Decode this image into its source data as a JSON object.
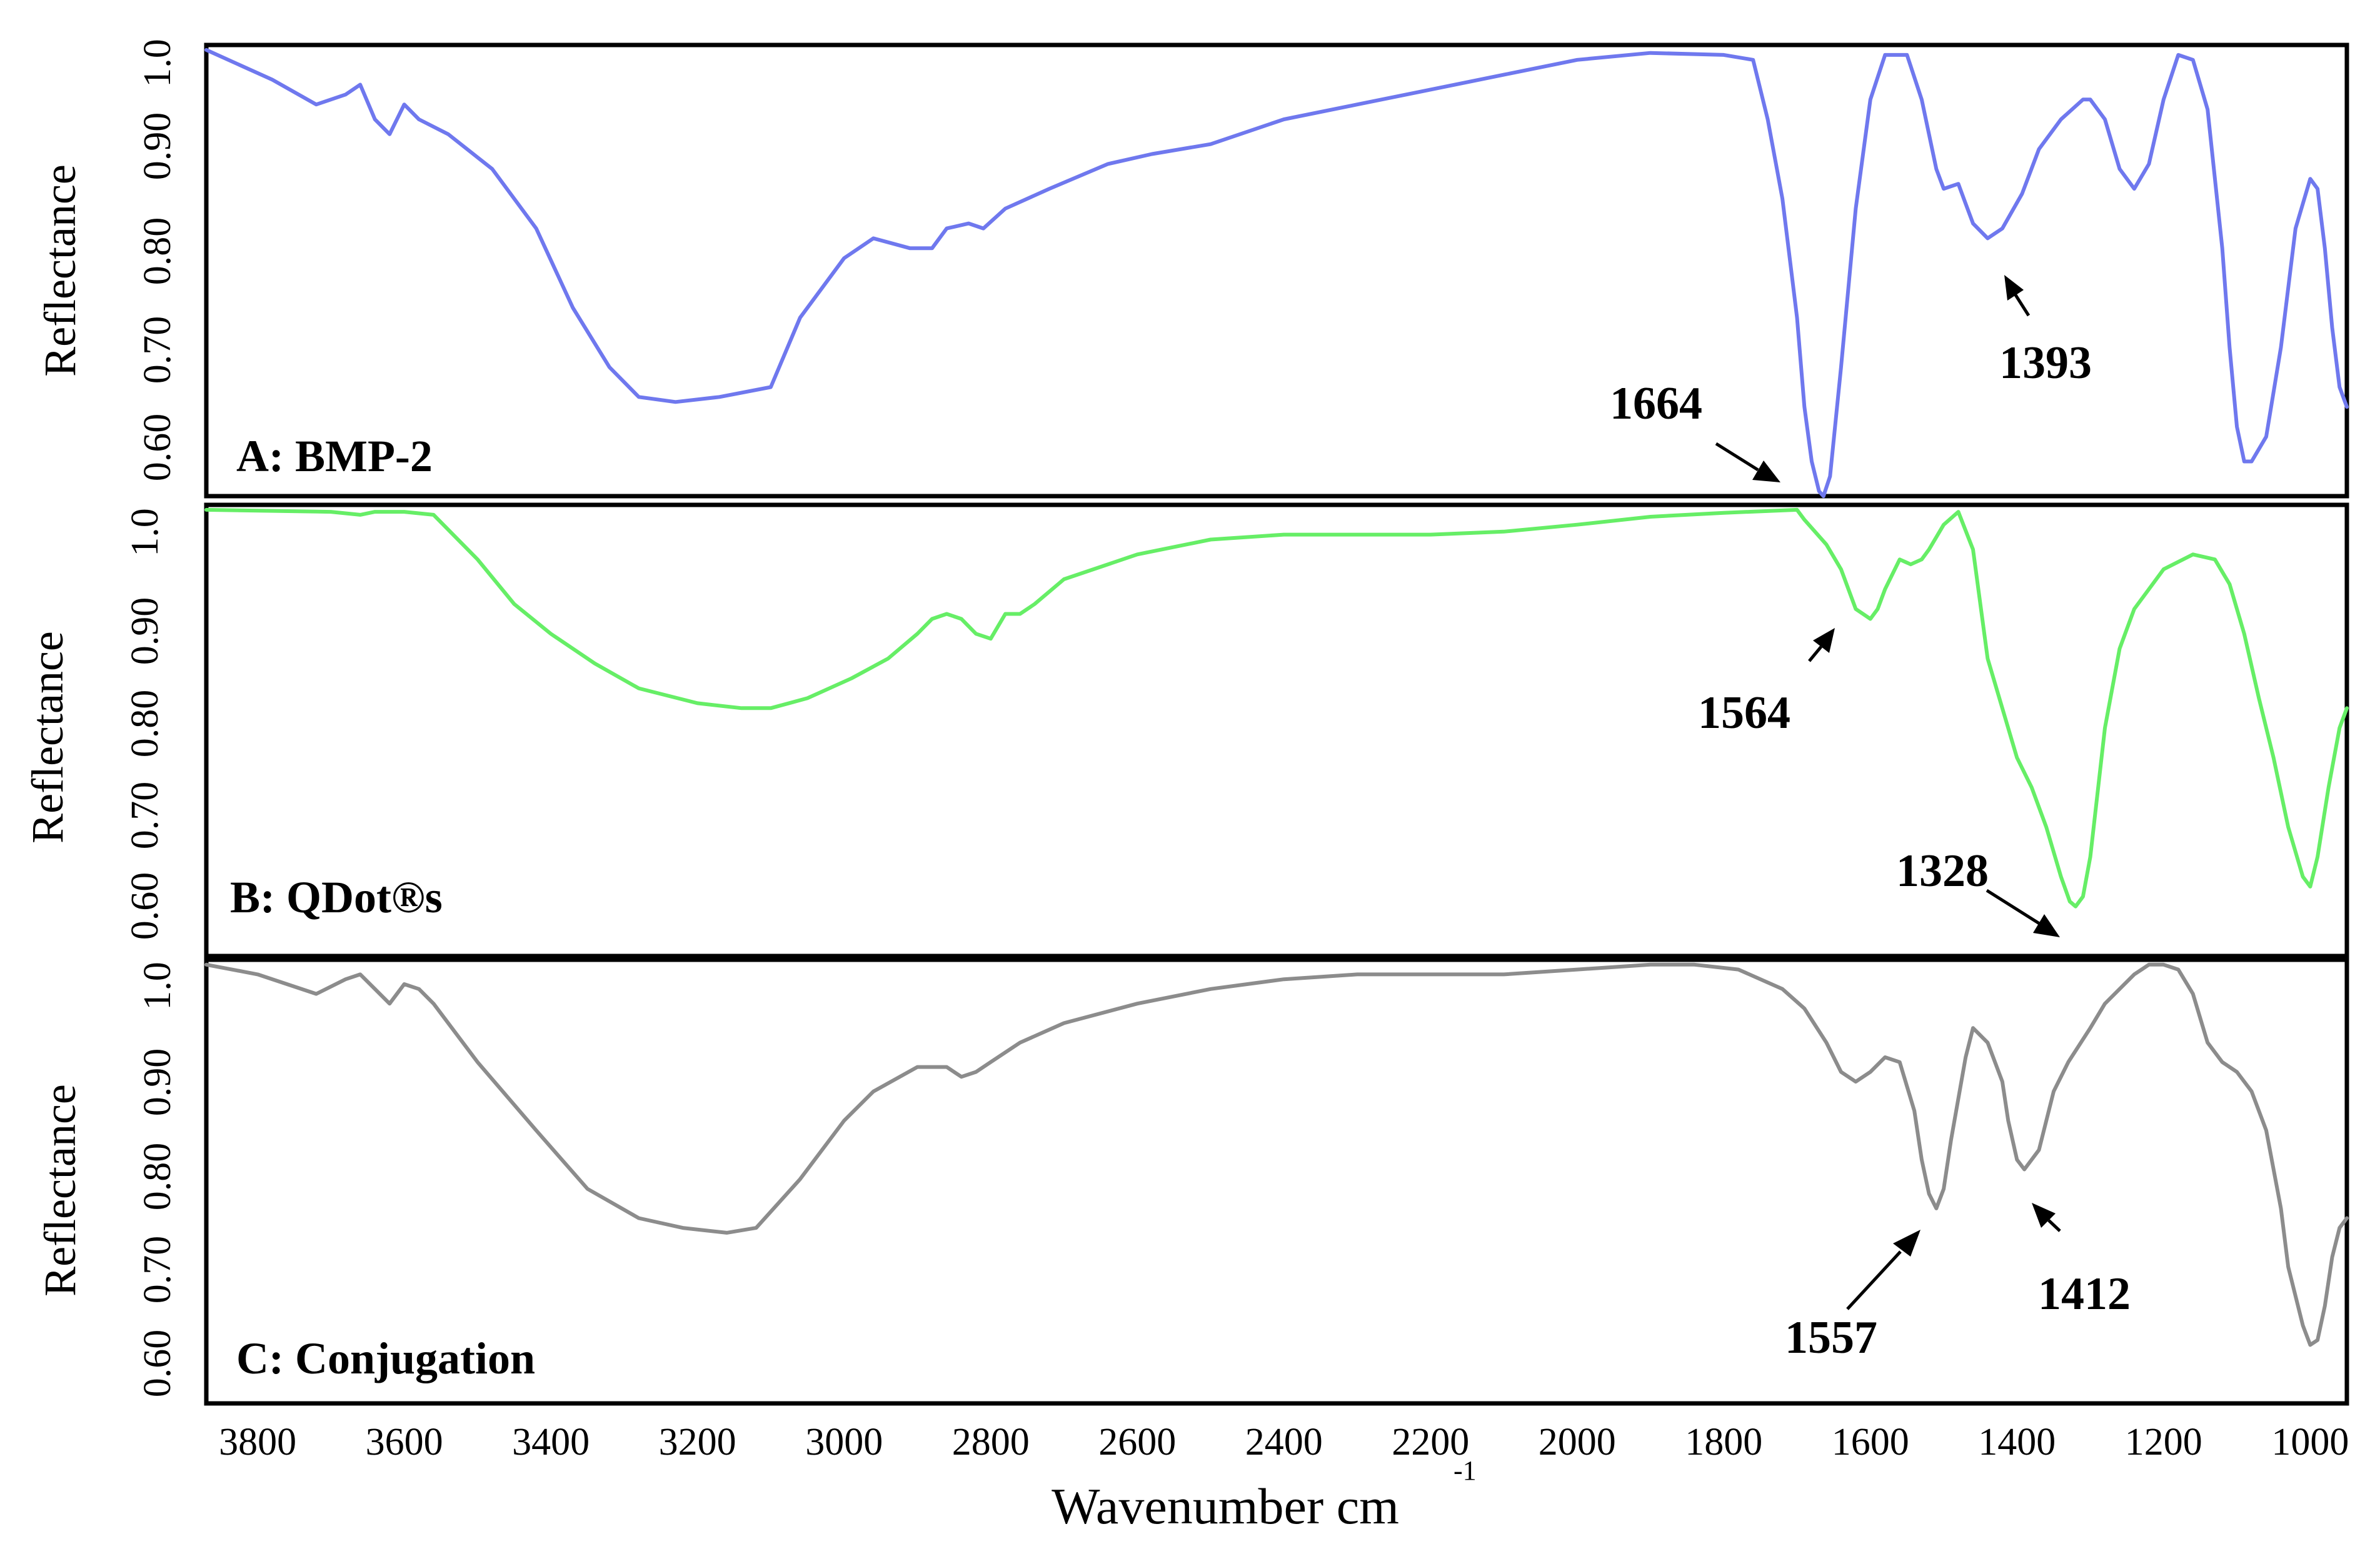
{
  "chart_data": {
    "type": "line",
    "xlabel": "Wavenumber cm",
    "xlabel_superscript": "-1",
    "ylabel": "Reflectance",
    "xlim": [
      3870,
      950
    ],
    "x_ticks": [
      "3800",
      "3600",
      "3400",
      "3200",
      "3000",
      "2800",
      "2600",
      "2400",
      "2200",
      "2000",
      "1800",
      "1600",
      "1400",
      "1200",
      "1000"
    ],
    "y_ticks": [
      "1.0",
      "0.90",
      "0.80",
      "0.70",
      "0.60"
    ],
    "ylim": [
      0.55,
      1.005
    ],
    "panels": [
      {
        "name": "A: BMP-2",
        "color": "#6f78ee",
        "x": [
          3870,
          3780,
          3720,
          3680,
          3660,
          3640,
          3620,
          3600,
          3580,
          3540,
          3480,
          3420,
          3370,
          3320,
          3280,
          3230,
          3170,
          3100,
          3060,
          3000,
          2960,
          2910,
          2880,
          2860,
          2830,
          2810,
          2780,
          2720,
          2640,
          2580,
          2500,
          2400,
          2300,
          2200,
          2100,
          2000,
          1900,
          1800,
          1760,
          1740,
          1720,
          1700,
          1690,
          1680,
          1670,
          1664,
          1655,
          1640,
          1620,
          1600,
          1580,
          1550,
          1530,
          1510,
          1500,
          1480,
          1470,
          1460,
          1440,
          1420,
          1393,
          1370,
          1340,
          1310,
          1300,
          1280,
          1260,
          1240,
          1220,
          1200,
          1180,
          1160,
          1140,
          1120,
          1110,
          1100,
          1090,
          1080,
          1060,
          1040,
          1020,
          1000,
          990,
          980,
          970,
          960,
          950
        ],
        "values": [
          1.0,
          0.97,
          0.945,
          0.955,
          0.965,
          0.93,
          0.915,
          0.945,
          0.93,
          0.915,
          0.88,
          0.82,
          0.74,
          0.68,
          0.65,
          0.645,
          0.65,
          0.66,
          0.73,
          0.79,
          0.81,
          0.8,
          0.8,
          0.82,
          0.825,
          0.82,
          0.84,
          0.86,
          0.885,
          0.895,
          0.905,
          0.93,
          0.945,
          0.96,
          0.975,
          0.99,
          0.997,
          0.995,
          0.99,
          0.93,
          0.85,
          0.73,
          0.64,
          0.585,
          0.555,
          0.55,
          0.57,
          0.68,
          0.84,
          0.95,
          0.995,
          0.995,
          0.95,
          0.88,
          0.86,
          0.865,
          0.845,
          0.825,
          0.81,
          0.82,
          0.855,
          0.9,
          0.93,
          0.95,
          0.95,
          0.93,
          0.88,
          0.86,
          0.885,
          0.95,
          0.995,
          0.99,
          0.94,
          0.8,
          0.7,
          0.62,
          0.585,
          0.585,
          0.61,
          0.7,
          0.82,
          0.87,
          0.86,
          0.8,
          0.72,
          0.66,
          0.64
        ]
      },
      {
        "name": "B: QDot®s",
        "color": "#66ee66",
        "x": [
          3870,
          3700,
          3660,
          3640,
          3600,
          3560,
          3500,
          3450,
          3400,
          3340,
          3280,
          3200,
          3140,
          3100,
          3050,
          2990,
          2940,
          2900,
          2880,
          2860,
          2840,
          2820,
          2800,
          2780,
          2760,
          2740,
          2700,
          2600,
          2500,
          2400,
          2300,
          2200,
          2100,
          2000,
          1900,
          1800,
          1700,
          1690,
          1660,
          1640,
          1620,
          1600,
          1590,
          1580,
          1560,
          1545,
          1530,
          1520,
          1500,
          1480,
          1460,
          1440,
          1400,
          1380,
          1360,
          1340,
          1328,
          1320,
          1310,
          1300,
          1280,
          1260,
          1240,
          1220,
          1200,
          1160,
          1130,
          1110,
          1090,
          1070,
          1050,
          1030,
          1010,
          1000,
          990,
          975,
          960,
          950
        ],
        "values": [
          1.0,
          0.998,
          0.995,
          0.998,
          0.998,
          0.995,
          0.95,
          0.905,
          0.875,
          0.845,
          0.82,
          0.805,
          0.8,
          0.8,
          0.81,
          0.83,
          0.85,
          0.875,
          0.89,
          0.895,
          0.89,
          0.875,
          0.87,
          0.895,
          0.895,
          0.905,
          0.93,
          0.955,
          0.97,
          0.975,
          0.975,
          0.975,
          0.978,
          0.985,
          0.993,
          0.997,
          1.0,
          0.99,
          0.965,
          0.94,
          0.9,
          0.89,
          0.9,
          0.92,
          0.95,
          0.945,
          0.95,
          0.96,
          0.985,
          0.998,
          0.96,
          0.85,
          0.75,
          0.72,
          0.68,
          0.63,
          0.605,
          0.6,
          0.61,
          0.65,
          0.78,
          0.86,
          0.9,
          0.92,
          0.94,
          0.955,
          0.95,
          0.925,
          0.875,
          0.81,
          0.75,
          0.68,
          0.63,
          0.62,
          0.65,
          0.72,
          0.78,
          0.8
        ]
      },
      {
        "name": "C: Conjugation",
        "color": "#8c8c8c",
        "x": [
          3870,
          3800,
          3720,
          3680,
          3660,
          3640,
          3620,
          3600,
          3580,
          3560,
          3500,
          3420,
          3350,
          3280,
          3220,
          3160,
          3120,
          3060,
          3000,
          2960,
          2900,
          2860,
          2840,
          2820,
          2800,
          2760,
          2700,
          2600,
          2500,
          2400,
          2300,
          2200,
          2100,
          2000,
          1900,
          1840,
          1780,
          1720,
          1690,
          1660,
          1640,
          1620,
          1600,
          1580,
          1560,
          1540,
          1530,
          1520,
          1510,
          1500,
          1490,
          1470,
          1460,
          1440,
          1420,
          1412,
          1400,
          1390,
          1370,
          1350,
          1330,
          1300,
          1280,
          1260,
          1240,
          1220,
          1200,
          1180,
          1160,
          1140,
          1120,
          1100,
          1080,
          1060,
          1040,
          1030,
          1010,
          1000,
          990,
          980,
          970,
          960,
          950
        ],
        "values": [
          1.0,
          0.99,
          0.97,
          0.985,
          0.99,
          0.975,
          0.96,
          0.98,
          0.975,
          0.96,
          0.9,
          0.83,
          0.77,
          0.74,
          0.73,
          0.725,
          0.73,
          0.78,
          0.84,
          0.87,
          0.895,
          0.895,
          0.885,
          0.89,
          0.9,
          0.92,
          0.94,
          0.96,
          0.975,
          0.985,
          0.99,
          0.99,
          0.99,
          0.995,
          1.0,
          1.0,
          0.995,
          0.975,
          0.955,
          0.92,
          0.89,
          0.88,
          0.89,
          0.905,
          0.9,
          0.85,
          0.8,
          0.765,
          0.75,
          0.77,
          0.82,
          0.905,
          0.935,
          0.92,
          0.88,
          0.84,
          0.8,
          0.79,
          0.81,
          0.87,
          0.9,
          0.935,
          0.96,
          0.975,
          0.99,
          1.0,
          1.0,
          0.995,
          0.97,
          0.92,
          0.9,
          0.89,
          0.87,
          0.83,
          0.75,
          0.69,
          0.63,
          0.61,
          0.615,
          0.65,
          0.7,
          0.73,
          0.74
        ]
      }
    ],
    "annotations": [
      {
        "panel": 0,
        "text": "1664",
        "x": 1664
      },
      {
        "panel": 0,
        "text": "1393",
        "x": 1393
      },
      {
        "panel": 1,
        "text": "1564",
        "x": 1564
      },
      {
        "panel": 1,
        "text": "1328",
        "x": 1328
      },
      {
        "panel": 2,
        "text": "1557",
        "x": 1557
      },
      {
        "panel": 2,
        "text": "1412",
        "x": 1412
      }
    ]
  }
}
